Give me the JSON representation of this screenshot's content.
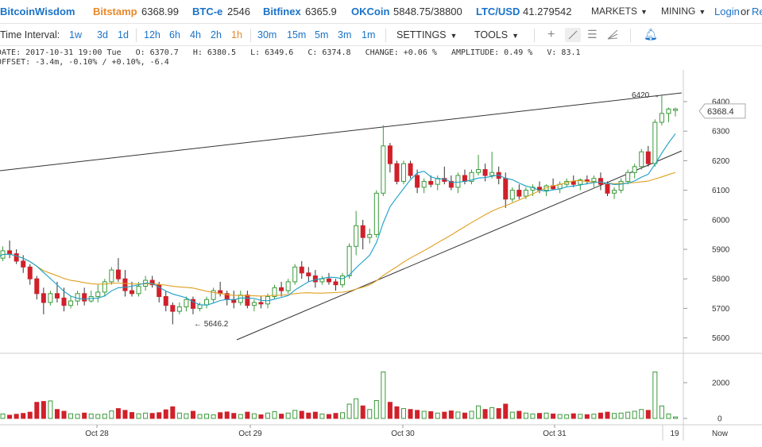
{
  "header": {
    "brand": "BitcoinWisdom",
    "tickers": [
      {
        "exchange": "Bitstamp",
        "price": "6368.99",
        "color": "orange"
      },
      {
        "exchange": "BTC-e",
        "price": "2546",
        "color": "blue"
      },
      {
        "exchange": "Bitfinex",
        "price": "6365.9",
        "color": "blue"
      },
      {
        "exchange": "OKCoin",
        "price": "5848.75/38800",
        "color": "blue"
      },
      {
        "exchange": "LTC/USD",
        "price": "41.279542",
        "color": "blue"
      }
    ],
    "markets_label": "MARKETS",
    "mining_label": "MINING",
    "login_label": "Login",
    "or_label": "or",
    "register_label": "Re"
  },
  "toolbar": {
    "time_interval_label": "Time Interval:",
    "intervals": [
      "1w",
      "3d",
      "1d",
      "12h",
      "6h",
      "4h",
      "2h",
      "1h",
      "30m",
      "15m",
      "5m",
      "3m",
      "1m"
    ],
    "active_interval": "1h",
    "settings_label": "SETTINGS",
    "tools_label": "TOOLS",
    "tool_icons": [
      "crosshair-icon",
      "line-tool-icon",
      "horizontal-lines-icon",
      "fan-tool-icon",
      "bell-icon"
    ]
  },
  "info": {
    "line1": "DATE: 2017-10-31 19:00 Tue   O: 6370.7   H: 6380.5   L: 6349.6   C: 6374.8   CHANGE: +0.06 %   AMPLITUDE: 0.49 %   V: 83.1",
    "line2": "OFFSET: -3.4m, -0.10% / +0.10%, -6.4"
  },
  "chart_data": {
    "type": "candlestick",
    "price_axis_ticks": [
      "6400",
      "6300",
      "6200",
      "6100",
      "6000",
      "5900",
      "5800",
      "5700",
      "5600"
    ],
    "volume_axis_ticks": [
      "2000",
      "0"
    ],
    "x_labels": [
      "Oct 28",
      "Oct 29",
      "Oct 30",
      "Oct 31"
    ],
    "x_right_labels": [
      "19",
      "Now"
    ],
    "current_price": "6368.4",
    "annotation_high": "6420",
    "annotation_low": "5646.2",
    "candles": [
      [
        5840,
        5880,
        5830,
        5870,
        200
      ],
      [
        5870,
        5910,
        5860,
        5895,
        250
      ],
      [
        5895,
        5930,
        5870,
        5885,
        180
      ],
      [
        5885,
        5900,
        5850,
        5860,
        230
      ],
      [
        5860,
        5880,
        5820,
        5840,
        280
      ],
      [
        5840,
        5850,
        5780,
        5800,
        350
      ],
      [
        5800,
        5810,
        5730,
        5750,
        900
      ],
      [
        5750,
        5770,
        5680,
        5720,
        950
      ],
      [
        5720,
        5760,
        5710,
        5750,
        980
      ],
      [
        5750,
        5790,
        5720,
        5735,
        500
      ],
      [
        5735,
        5770,
        5690,
        5710,
        400
      ],
      [
        5710,
        5740,
        5700,
        5725,
        260
      ],
      [
        5725,
        5760,
        5710,
        5750,
        230
      ],
      [
        5750,
        5770,
        5710,
        5725,
        300
      ],
      [
        5725,
        5760,
        5720,
        5740,
        250
      ],
      [
        5740,
        5780,
        5720,
        5755,
        220
      ],
      [
        5755,
        5800,
        5740,
        5790,
        240
      ],
      [
        5790,
        5840,
        5780,
        5830,
        420
      ],
      [
        5830,
        5870,
        5790,
        5800,
        550
      ],
      [
        5800,
        5830,
        5740,
        5760,
        450
      ],
      [
        5760,
        5790,
        5740,
        5750,
        330
      ],
      [
        5750,
        5790,
        5740,
        5775,
        260
      ],
      [
        5775,
        5810,
        5760,
        5795,
        300
      ],
      [
        5795,
        5810,
        5770,
        5780,
        280
      ],
      [
        5780,
        5790,
        5720,
        5740,
        320
      ],
      [
        5740,
        5760,
        5690,
        5710,
        480
      ],
      [
        5710,
        5720,
        5646,
        5690,
        650
      ],
      [
        5690,
        5720,
        5680,
        5705,
        300
      ],
      [
        5705,
        5740,
        5690,
        5730,
        260
      ],
      [
        5730,
        5740,
        5680,
        5700,
        400
      ],
      [
        5700,
        5720,
        5690,
        5712,
        220
      ],
      [
        5712,
        5740,
        5700,
        5730,
        240
      ],
      [
        5730,
        5770,
        5720,
        5760,
        200
      ],
      [
        5760,
        5790,
        5740,
        5750,
        320
      ],
      [
        5750,
        5760,
        5710,
        5730,
        360
      ],
      [
        5730,
        5760,
        5700,
        5720,
        280
      ],
      [
        5720,
        5760,
        5710,
        5745,
        220
      ],
      [
        5745,
        5760,
        5700,
        5710,
        350
      ],
      [
        5710,
        5730,
        5690,
        5720,
        260
      ],
      [
        5720,
        5740,
        5700,
        5715,
        200
      ],
      [
        5715,
        5750,
        5700,
        5740,
        300
      ],
      [
        5740,
        5780,
        5730,
        5770,
        380
      ],
      [
        5770,
        5790,
        5740,
        5760,
        240
      ],
      [
        5760,
        5800,
        5750,
        5790,
        300
      ],
      [
        5790,
        5850,
        5780,
        5840,
        450
      ],
      [
        5840,
        5860,
        5800,
        5820,
        400
      ],
      [
        5820,
        5840,
        5790,
        5810,
        300
      ],
      [
        5810,
        5830,
        5770,
        5790,
        350
      ],
      [
        5790,
        5810,
        5780,
        5800,
        250
      ],
      [
        5800,
        5820,
        5780,
        5790,
        220
      ],
      [
        5790,
        5800,
        5760,
        5780,
        280
      ],
      [
        5780,
        5820,
        5770,
        5810,
        320
      ],
      [
        5810,
        5920,
        5800,
        5910,
        800
      ],
      [
        5910,
        6030,
        5880,
        5980,
        1100
      ],
      [
        5980,
        6000,
        5900,
        5940,
        700
      ],
      [
        5940,
        5970,
        5920,
        5950,
        500
      ],
      [
        5950,
        6100,
        5940,
        6090,
        1000
      ],
      [
        6090,
        6320,
        6080,
        6250,
        2600
      ],
      [
        6250,
        6260,
        6160,
        6190,
        900
      ],
      [
        6190,
        6200,
        6120,
        6130,
        650
      ],
      [
        6130,
        6200,
        6120,
        6190,
        550
      ],
      [
        6190,
        6200,
        6140,
        6150,
        500
      ],
      [
        6150,
        6170,
        6090,
        6110,
        450
      ],
      [
        6110,
        6140,
        6090,
        6130,
        400
      ],
      [
        6130,
        6150,
        6110,
        6120,
        380
      ],
      [
        6120,
        6150,
        6100,
        6140,
        300
      ],
      [
        6140,
        6180,
        6120,
        6130,
        350
      ],
      [
        6130,
        6150,
        6100,
        6110,
        420
      ],
      [
        6110,
        6160,
        6090,
        6150,
        360
      ],
      [
        6150,
        6170,
        6120,
        6130,
        300
      ],
      [
        6130,
        6170,
        6120,
        6160,
        400
      ],
      [
        6160,
        6220,
        6150,
        6170,
        700
      ],
      [
        6170,
        6190,
        6130,
        6150,
        500
      ],
      [
        6150,
        6230,
        6140,
        6160,
        600
      ],
      [
        6160,
        6180,
        6120,
        6140,
        550
      ],
      [
        6140,
        6160,
        6040,
        6070,
        800
      ],
      [
        6070,
        6110,
        6060,
        6100,
        350
      ],
      [
        6100,
        6120,
        6070,
        6080,
        400
      ],
      [
        6080,
        6110,
        6070,
        6100,
        300
      ],
      [
        6100,
        6120,
        6080,
        6110,
        250
      ],
      [
        6110,
        6130,
        6090,
        6100,
        280
      ],
      [
        6100,
        6120,
        6080,
        6115,
        300
      ],
      [
        6115,
        6140,
        6100,
        6105,
        250
      ],
      [
        6105,
        6130,
        6090,
        6120,
        220
      ],
      [
        6120,
        6140,
        6110,
        6130,
        200
      ],
      [
        6130,
        6150,
        6110,
        6120,
        260
      ],
      [
        6120,
        6140,
        6100,
        6135,
        230
      ],
      [
        6135,
        6150,
        6120,
        6130,
        210
      ],
      [
        6130,
        6150,
        6110,
        6140,
        240
      ],
      [
        6140,
        6160,
        6100,
        6120,
        300
      ],
      [
        6120,
        6130,
        6080,
        6090,
        350
      ],
      [
        6090,
        6110,
        6070,
        6100,
        280
      ],
      [
        6100,
        6140,
        6090,
        6130,
        300
      ],
      [
        6130,
        6170,
        6120,
        6160,
        350
      ],
      [
        6160,
        6190,
        6140,
        6180,
        400
      ],
      [
        6180,
        6240,
        6170,
        6230,
        500
      ],
      [
        6230,
        6250,
        6180,
        6190,
        450
      ],
      [
        6190,
        6340,
        6180,
        6330,
        2600
      ],
      [
        6330,
        6420,
        6320,
        6360,
        700
      ],
      [
        6360,
        6380,
        6330,
        6375,
        250
      ],
      [
        6370,
        6380,
        6350,
        6375,
        83
      ]
    ]
  }
}
